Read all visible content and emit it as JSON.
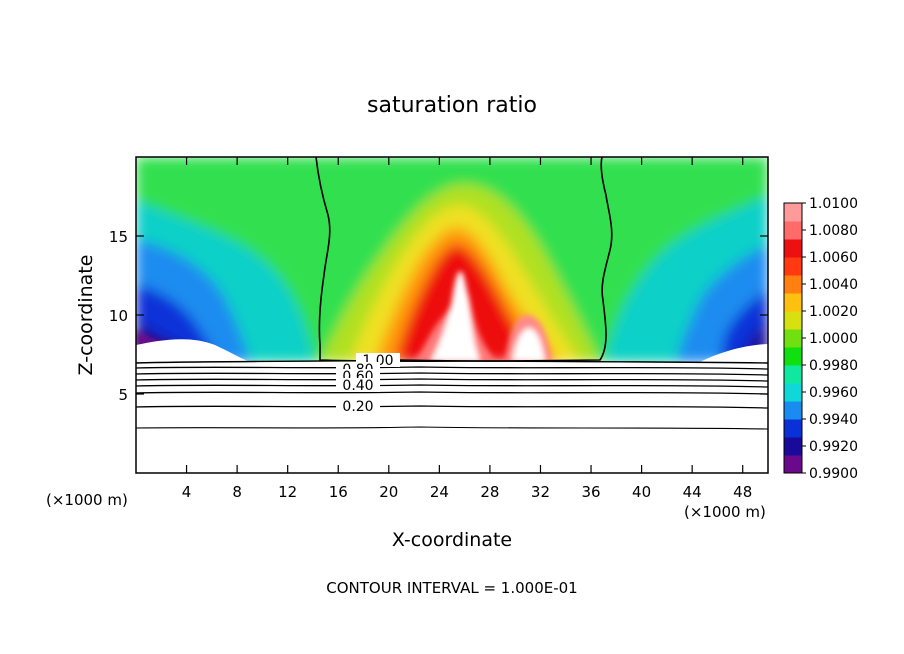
{
  "chart_data": {
    "type": "heatmap",
    "title": "saturation ratio",
    "xlabel": "X-coordinate",
    "ylabel": "Z-coordinate",
    "x_unit_left": "(×1000 m)",
    "x_unit_right": "(×1000 m)",
    "footer": "CONTOUR INTERVAL = 1.000E-01",
    "xlim": [
      0,
      50
    ],
    "ylim": [
      0,
      20
    ],
    "xticks": [
      4,
      8,
      12,
      16,
      20,
      24,
      28,
      32,
      36,
      40,
      44,
      48
    ],
    "yticks": [
      5,
      10,
      15
    ],
    "colorbar": {
      "min": 0.99,
      "max": 1.01,
      "levels": [
        0.99,
        0.992,
        0.994,
        0.996,
        0.998,
        1.0,
        1.002,
        1.004,
        1.006,
        1.008,
        1.01
      ],
      "labels": [
        "1.0100",
        "1.0080",
        "1.0060",
        "1.0040",
        "1.0020",
        "1.0000",
        "0.9980",
        "0.9960",
        "0.9940",
        "0.9920",
        "0.9900"
      ],
      "colors": [
        "#6a0a8a",
        "#1a0a9a",
        "#0a30d8",
        "#1a8cf0",
        "#10d8d8",
        "#10e8a0",
        "#10e010",
        "#70e010",
        "#d8e010",
        "#ffc010",
        "#ff8010",
        "#ff3a10",
        "#ee1010",
        "#ff6a6a",
        "#ff9a9a"
      ]
    },
    "contours": [
      {
        "label": "1.00",
        "level": 1.0
      },
      {
        "label": "0.80",
        "level": 0.8
      },
      {
        "label": "0.60",
        "level": 0.6
      },
      {
        "label": "0.40",
        "level": 0.4
      },
      {
        "label": "0.20",
        "level": 0.2
      }
    ],
    "cloud_base_z": 7.1,
    "supersaturated_region_x": [
      14.5,
      36.5
    ]
  }
}
